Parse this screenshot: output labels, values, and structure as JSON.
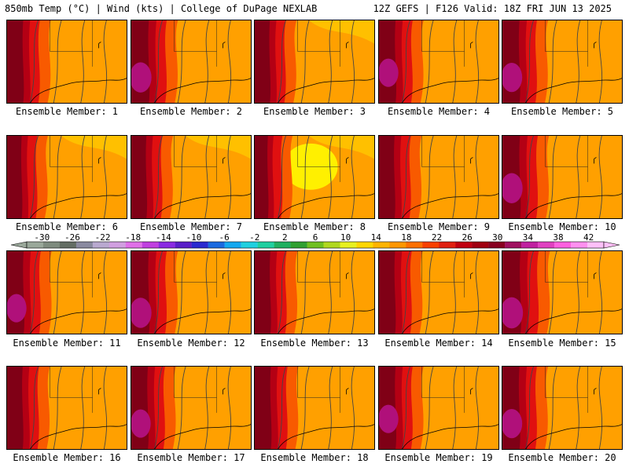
{
  "header": {
    "left_title": "850mb Temp (°C) | Wind (kts) | College of DuPage NEXLAB",
    "right_title": "12Z GEFS | F126 Valid: 18Z FRI JUN 13 2025"
  },
  "member_label_prefix": "Ensemble Member:",
  "members": [
    {
      "number": "1",
      "warmth": 0.65
    },
    {
      "number": "2",
      "warmth": 0.8
    },
    {
      "number": "3",
      "warmth": 0.55
    },
    {
      "number": "4",
      "warmth": 0.7
    },
    {
      "number": "5",
      "warmth": 0.75
    },
    {
      "number": "6",
      "warmth": 0.5
    },
    {
      "number": "7",
      "warmth": 0.55
    },
    {
      "number": "8",
      "warmth": 0.35
    },
    {
      "number": "9",
      "warmth": 0.6
    },
    {
      "number": "10",
      "warmth": 0.8
    },
    {
      "number": "11",
      "warmth": 0.7
    },
    {
      "number": "12",
      "warmth": 0.8
    },
    {
      "number": "13",
      "warmth": 0.6
    },
    {
      "number": "14",
      "warmth": 0.65
    },
    {
      "number": "15",
      "warmth": 0.85
    },
    {
      "number": "16",
      "warmth": 0.6
    },
    {
      "number": "17",
      "warmth": 0.7
    },
    {
      "number": "18",
      "warmth": 0.65
    },
    {
      "number": "19",
      "warmth": 0.7
    },
    {
      "number": "20",
      "warmth": 0.75
    }
  ],
  "colorbar": {
    "tick_labels": [
      "-30",
      "-26",
      "-22",
      "-18",
      "-14",
      "-10",
      "-6",
      "-2",
      "2",
      "6",
      "10",
      "14",
      "18",
      "22",
      "26",
      "30",
      "34",
      "38",
      "42"
    ],
    "colors": [
      "#9aa89a",
      "#7f8c7f",
      "#646e64",
      "#8a8aa0",
      "#b9a9d0",
      "#d19fe0",
      "#e070e8",
      "#c040e0",
      "#8a2be2",
      "#5a1fc8",
      "#2a2ad0",
      "#1a6ae0",
      "#14a8f0",
      "#20d0e0",
      "#20d0a0",
      "#20b060",
      "#30a030",
      "#70c020",
      "#b0d820",
      "#e8f020",
      "#ffd700",
      "#ffb400",
      "#ff9600",
      "#ff7000",
      "#f84000",
      "#e02010",
      "#c00010",
      "#a00010",
      "#880020",
      "#a01060",
      "#c020a0",
      "#e040c0",
      "#ff60e0",
      "#ff90f0",
      "#ffc0f8"
    ]
  },
  "palette": {
    "hot": "#800016",
    "very_warm": "#b40014",
    "warm": "#e01010",
    "mild": "#f85a00",
    "orange": "#ff8c00",
    "light_orange": "#ffa000",
    "yellow_orange": "#ffc800",
    "yellow": "#fff000",
    "magenta": "#b0107a",
    "contour": "#444444"
  }
}
